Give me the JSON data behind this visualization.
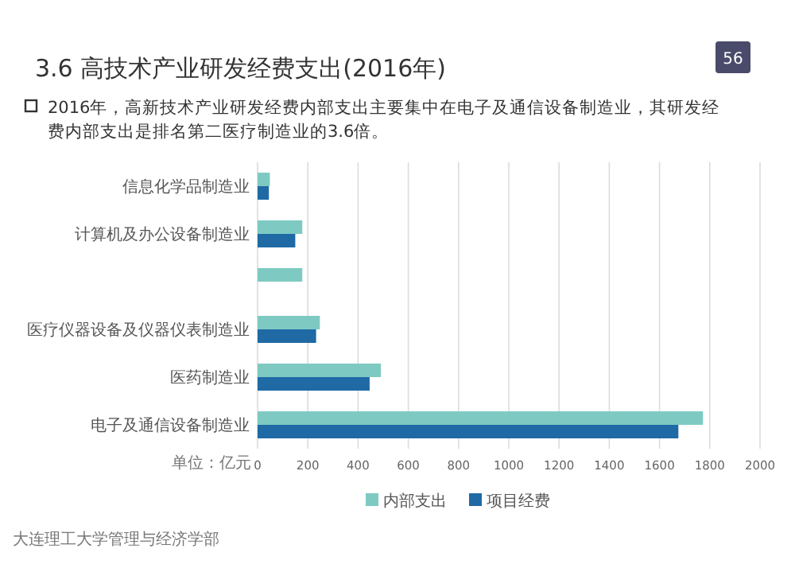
{
  "chart_data": {
    "type": "bar",
    "orientation": "horizontal",
    "title": "3.6  高技术产业研发经费支出(2016年)",
    "subtitle": "2016年，高新技术产业研发经费内部支出主要集中在电子及通信设备制造业，其研发经费内部支出是排名第二医疗制造业的3.6倍。",
    "categories": [
      "信息化学品制造业",
      "计算机及办公设备制造业",
      null,
      "医疗仪器设备及仪器仪表制造业",
      "医药制造业",
      "电子及通信设备制造业"
    ],
    "series": [
      {
        "name": "内部支出",
        "color": "#7ecac3",
        "values": [
          49,
          178,
          178,
          248,
          491,
          1773
        ]
      },
      {
        "name": "项目经费",
        "color": "#1f6aa5",
        "values": [
          45,
          150,
          null,
          233,
          446,
          1675
        ]
      }
    ],
    "xlim": [
      0,
      2000
    ],
    "xticks": [
      0,
      200,
      400,
      600,
      800,
      1000,
      1200,
      1400,
      1600,
      1800,
      2000
    ],
    "grid": "x",
    "legend": "bottom",
    "annotations": [
      "单位：亿元",
      "大连理工大学管理与经济学部",
      "56"
    ]
  }
}
